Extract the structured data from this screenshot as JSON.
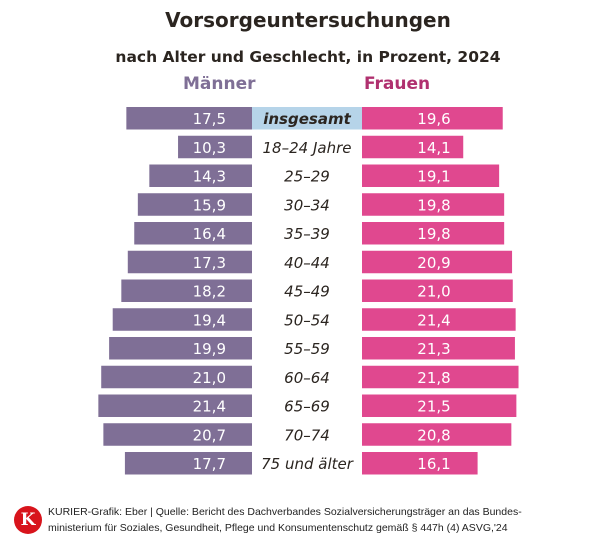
{
  "chart_data": {
    "type": "bar",
    "orientation": "horizontal-diverging",
    "title": "Vorsorgeuntersuchungen",
    "subtitle": "nach Alter und Geschlecht, in Prozent, 2024",
    "categories": [
      "insgesamt",
      "18–24 Jahre",
      "25–29",
      "30–34",
      "35–39",
      "40–44",
      "45–49",
      "50–54",
      "55–59",
      "60–64",
      "65–69",
      "70–74",
      "75 und älter"
    ],
    "series": [
      {
        "name": "Männer",
        "color": "#7f6f96",
        "values": [
          17.5,
          10.3,
          14.3,
          15.9,
          16.4,
          17.3,
          18.2,
          19.4,
          19.9,
          21.0,
          21.4,
          20.7,
          17.7
        ],
        "labels": [
          "17,5",
          "10,3",
          "14,3",
          "15,9",
          "16,4",
          "17,3",
          "18,2",
          "19,4",
          "19,9",
          "21,0",
          "21,4",
          "20,7",
          "17,7"
        ]
      },
      {
        "name": "Frauen",
        "color": "#e0488f",
        "values": [
          19.6,
          14.1,
          19.1,
          19.8,
          19.8,
          20.9,
          21.0,
          21.4,
          21.3,
          21.8,
          21.5,
          20.8,
          16.1
        ],
        "labels": [
          "19,6",
          "14,1",
          "19,1",
          "19,8",
          "19,8",
          "20,9",
          "21,0",
          "21,4",
          "21,3",
          "21,8",
          "21,5",
          "20,8",
          "16,1"
        ]
      }
    ],
    "highlight_category_color": "#b6d4e9",
    "grid": false,
    "legend_placement": "top"
  },
  "footer": {
    "logo_letter": "K",
    "line1": "KURIER-Grafik: Eber | Quelle: Bericht des Dachverbandes Sozialversicherungsträger an das Bundes-",
    "line2": "ministerium für Soziales, Gesundheit, Pflege und Konsumentenschutz gemäß § 447h (4) ASVG,'24"
  }
}
